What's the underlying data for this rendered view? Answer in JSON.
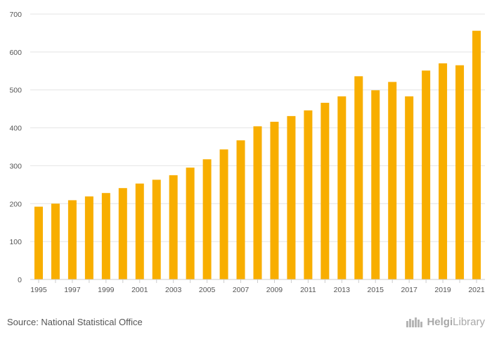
{
  "chart_data": {
    "type": "bar",
    "title": "",
    "xlabel": "",
    "ylabel": "",
    "categories": [
      "1995",
      "1996",
      "1997",
      "1998",
      "1999",
      "2000",
      "2001",
      "2002",
      "2003",
      "2004",
      "2005",
      "2006",
      "2007",
      "2008",
      "2009",
      "2010",
      "2011",
      "2012",
      "2013",
      "2014",
      "2015",
      "2016",
      "2017",
      "2018",
      "2019",
      "2020",
      "2021"
    ],
    "x_tick_labels": [
      "1995",
      "1997",
      "1999",
      "2001",
      "2003",
      "2005",
      "2007",
      "2009",
      "2011",
      "2013",
      "2015",
      "2017",
      "2019",
      "2021"
    ],
    "values": [
      192,
      200,
      209,
      219,
      228,
      241,
      253,
      263,
      275,
      295,
      317,
      343,
      367,
      404,
      416,
      431,
      446,
      466,
      483,
      536,
      499,
      521,
      483,
      551,
      570,
      565,
      656
    ],
    "ylim": [
      0,
      700
    ],
    "y_ticks": [
      0,
      100,
      200,
      300,
      400,
      500,
      600,
      700
    ],
    "grid": true,
    "bar_color": "#f8ae00"
  },
  "footer": {
    "source": "Source: National Statistical Office",
    "logo_text_bold": "Helgi",
    "logo_text_rest": "Library"
  }
}
